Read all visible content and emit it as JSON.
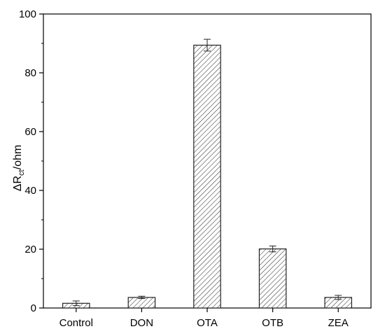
{
  "chart_data": {
    "type": "bar",
    "title": "",
    "categories": [
      "Control",
      "DON",
      "OTA",
      "OTB",
      "ZEA"
    ],
    "values": [
      1.6,
      3.6,
      89.4,
      20.1,
      3.6
    ],
    "errors": [
      0.8,
      0.4,
      2.0,
      1.0,
      0.7
    ],
    "xlabel": "",
    "ylabel": {
      "main": "ΔR",
      "sub": "ct",
      "rest": "/ohm"
    },
    "ylim": [
      0,
      100
    ],
    "yticks": [
      0,
      20,
      40,
      60,
      80,
      100
    ],
    "grid": false,
    "bar_pattern": "diagonal-hatch",
    "colors": {
      "bar_fill": "#ffffff",
      "stroke": "#222222"
    }
  }
}
